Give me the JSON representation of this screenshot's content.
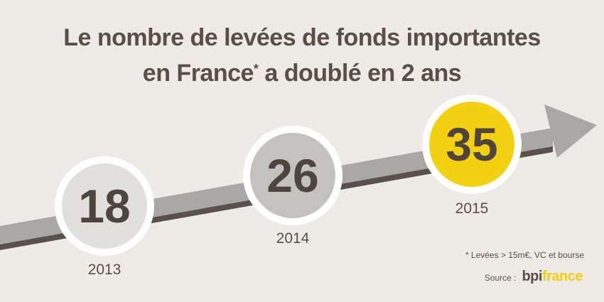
{
  "title": {
    "line1": "Le nombre de levées de fonds importantes",
    "line2_pre": "en France",
    "line2_mark": "*",
    "line2_post": " a doublé en 2 ans"
  },
  "points": [
    {
      "year": "2013",
      "value": "18",
      "color": "#e2e0dc"
    },
    {
      "year": "2014",
      "value": "26",
      "color": "#c4c2bf"
    },
    {
      "year": "2015",
      "value": "35",
      "color": "#f3d111"
    }
  ],
  "footnote": "* Levées > 15m€, VC et bourse",
  "source": {
    "label": "Source :",
    "logo_part1": "bpi",
    "logo_part2": "france"
  },
  "colors": {
    "background": "#eeebe6",
    "arrow": "#a9a8a6",
    "arrow_shadow": "#5b504a",
    "text": "#5a4f47",
    "accent": "#f3d111"
  }
}
